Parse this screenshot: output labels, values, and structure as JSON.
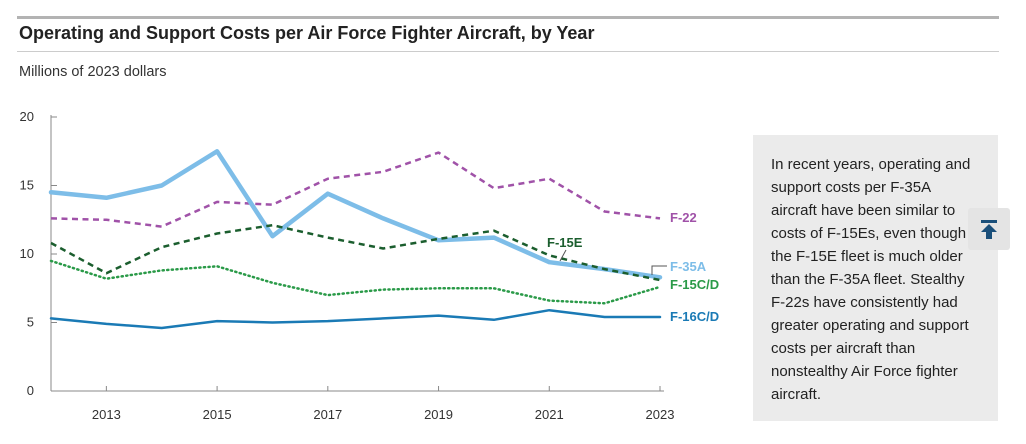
{
  "title": "Operating and Support Costs per Air Force Fighter Aircraft, by Year",
  "subtitle": "Millions of 2023 dollars",
  "sidebar_text": "In recent years, operating and support costs per F-35A aircraft have been similar to costs of F-15Es, even though the F-15E fleet is much older than the F-35A fleet. Stealthy F-22s have consistently had greater operating and support costs per aircraft than nonstealthy Air Force fighter aircraft.",
  "scroll_top_icon": "arrow-up-to-top-icon",
  "chart_data": {
    "type": "line",
    "title": "Operating and Support Costs per Air Force Fighter Aircraft, by Year",
    "ylabel": "Millions of 2023 dollars",
    "xlabel": "",
    "ylim": [
      0,
      20
    ],
    "xlim": [
      2012,
      2023
    ],
    "yticks": [
      0,
      5,
      10,
      15,
      20
    ],
    "xticks": [
      2013,
      2015,
      2017,
      2019,
      2021,
      2023
    ],
    "grid": false,
    "legend": "direct labels at line ends",
    "x": [
      2012,
      2013,
      2014,
      2015,
      2016,
      2017,
      2018,
      2019,
      2020,
      2021,
      2022,
      2023
    ],
    "series": [
      {
        "name": "F-22",
        "color": "#a052a8",
        "style": "dashed",
        "values": [
          12.6,
          12.5,
          12.0,
          13.8,
          13.6,
          15.5,
          16.0,
          17.4,
          14.8,
          15.5,
          13.1,
          12.6
        ]
      },
      {
        "name": "F-35A",
        "color": "#7dbde8",
        "style": "solid-thick",
        "values": [
          14.5,
          14.1,
          15.0,
          17.5,
          11.3,
          14.4,
          12.6,
          11.0,
          11.2,
          9.4,
          8.9,
          8.3
        ]
      },
      {
        "name": "F-15E",
        "color": "#1b5e2e",
        "style": "dashed",
        "values": [
          10.8,
          8.6,
          10.5,
          11.5,
          12.1,
          11.2,
          10.4,
          11.1,
          11.7,
          9.9,
          8.9,
          8.1
        ]
      },
      {
        "name": "F-15C/D",
        "color": "#2a9a48",
        "style": "dotted",
        "values": [
          9.5,
          8.2,
          8.8,
          9.1,
          7.9,
          7.0,
          7.4,
          7.5,
          7.5,
          6.6,
          6.4,
          7.6
        ]
      },
      {
        "name": "F-16C/D",
        "color": "#1a7ab5",
        "style": "solid",
        "values": [
          5.3,
          4.9,
          4.6,
          5.1,
          5.0,
          5.1,
          5.3,
          5.5,
          5.2,
          5.9,
          5.4,
          5.4
        ]
      }
    ]
  }
}
